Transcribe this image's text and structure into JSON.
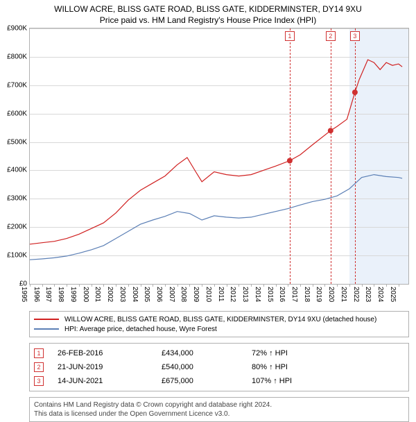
{
  "title_line1": "WILLOW ACRE, BLISS GATE ROAD, BLISS GATE, KIDDERMINSTER, DY14 9XU",
  "title_line2": "Price paid vs. HM Land Registry's House Price Index (HPI)",
  "chart": {
    "type": "line",
    "background_color": "#ffffff",
    "grid_color": "#d8d8d8",
    "border_color": "#b0b0b0",
    "shaded_future_color": "#eaf1fa",
    "y": {
      "min": 0,
      "max": 900000,
      "tick_step": 100000,
      "ticks": [
        "£0",
        "£100K",
        "£200K",
        "£300K",
        "£400K",
        "£500K",
        "£600K",
        "£700K",
        "£800K",
        "£900K"
      ]
    },
    "x": {
      "min": 1995,
      "max": 2025.8,
      "ticks": [
        1995,
        1996,
        1997,
        1998,
        1999,
        2000,
        2001,
        2002,
        2003,
        2004,
        2005,
        2006,
        2007,
        2008,
        2009,
        2010,
        2011,
        2012,
        2013,
        2014,
        2015,
        2016,
        2017,
        2018,
        2019,
        2020,
        2021,
        2022,
        2023,
        2024,
        2025
      ]
    },
    "shaded_from_year": 2021.0,
    "series": [
      {
        "name": "property",
        "label": "WILLOW ACRE, BLISS GATE ROAD, BLISS GATE, KIDDERMINSTER, DY14 9XU (detached house)",
        "color": "#d02020",
        "line_width": 1.2,
        "points": [
          [
            1995.0,
            140000
          ],
          [
            1996.0,
            145000
          ],
          [
            1997.0,
            150000
          ],
          [
            1998.0,
            160000
          ],
          [
            1999.0,
            175000
          ],
          [
            2000.0,
            195000
          ],
          [
            2001.0,
            215000
          ],
          [
            2002.0,
            250000
          ],
          [
            2003.0,
            295000
          ],
          [
            2004.0,
            330000
          ],
          [
            2005.0,
            355000
          ],
          [
            2006.0,
            380000
          ],
          [
            2007.0,
            420000
          ],
          [
            2007.8,
            445000
          ],
          [
            2008.5,
            395000
          ],
          [
            2009.0,
            360000
          ],
          [
            2010.0,
            395000
          ],
          [
            2011.0,
            385000
          ],
          [
            2012.0,
            380000
          ],
          [
            2013.0,
            385000
          ],
          [
            2014.0,
            400000
          ],
          [
            2015.0,
            415000
          ],
          [
            2016.15,
            434000
          ],
          [
            2017.0,
            455000
          ],
          [
            2018.0,
            490000
          ],
          [
            2019.47,
            540000
          ],
          [
            2020.0,
            555000
          ],
          [
            2020.8,
            580000
          ],
          [
            2021.45,
            675000
          ],
          [
            2021.8,
            720000
          ],
          [
            2022.5,
            790000
          ],
          [
            2023.0,
            780000
          ],
          [
            2023.5,
            755000
          ],
          [
            2024.0,
            780000
          ],
          [
            2024.5,
            770000
          ],
          [
            2025.0,
            775000
          ],
          [
            2025.3,
            765000
          ]
        ]
      },
      {
        "name": "hpi",
        "label": "HPI: Average price, detached house, Wyre Forest",
        "color": "#5b7fb5",
        "line_width": 1.2,
        "points": [
          [
            1995.0,
            85000
          ],
          [
            1996.0,
            88000
          ],
          [
            1997.0,
            92000
          ],
          [
            1998.0,
            98000
          ],
          [
            1999.0,
            108000
          ],
          [
            2000.0,
            120000
          ],
          [
            2001.0,
            135000
          ],
          [
            2002.0,
            160000
          ],
          [
            2003.0,
            185000
          ],
          [
            2004.0,
            210000
          ],
          [
            2005.0,
            225000
          ],
          [
            2006.0,
            238000
          ],
          [
            2007.0,
            255000
          ],
          [
            2008.0,
            248000
          ],
          [
            2009.0,
            225000
          ],
          [
            2010.0,
            240000
          ],
          [
            2011.0,
            235000
          ],
          [
            2012.0,
            232000
          ],
          [
            2013.0,
            235000
          ],
          [
            2014.0,
            245000
          ],
          [
            2015.0,
            255000
          ],
          [
            2016.0,
            265000
          ],
          [
            2017.0,
            278000
          ],
          [
            2018.0,
            290000
          ],
          [
            2019.0,
            298000
          ],
          [
            2020.0,
            310000
          ],
          [
            2021.0,
            335000
          ],
          [
            2022.0,
            375000
          ],
          [
            2023.0,
            385000
          ],
          [
            2024.0,
            378000
          ],
          [
            2025.0,
            375000
          ],
          [
            2025.3,
            372000
          ]
        ]
      }
    ],
    "markers": [
      {
        "index": "1",
        "year": 2016.15,
        "value": 434000
      },
      {
        "index": "2",
        "year": 2019.47,
        "value": 540000
      },
      {
        "index": "3",
        "year": 2021.45,
        "value": 675000
      }
    ],
    "marker_color": "#d03030",
    "marker_dot_fill": "#d03030"
  },
  "legend": [
    {
      "color": "#d02020",
      "label": "WILLOW ACRE, BLISS GATE ROAD, BLISS GATE, KIDDERMINSTER, DY14 9XU (detached house)"
    },
    {
      "color": "#5b7fb5",
      "label": "HPI: Average price, detached house, Wyre Forest"
    }
  ],
  "transactions": [
    {
      "index": "1",
      "date": "26-FEB-2016",
      "price": "£434,000",
      "delta": "72% ↑ HPI"
    },
    {
      "index": "2",
      "date": "21-JUN-2019",
      "price": "£540,000",
      "delta": "80% ↑ HPI"
    },
    {
      "index": "3",
      "date": "14-JUN-2021",
      "price": "£675,000",
      "delta": "107% ↑ HPI"
    }
  ],
  "footer": {
    "line1": "Contains HM Land Registry data © Crown copyright and database right 2024.",
    "line2": "This data is licensed under the Open Government Licence v3.0."
  }
}
